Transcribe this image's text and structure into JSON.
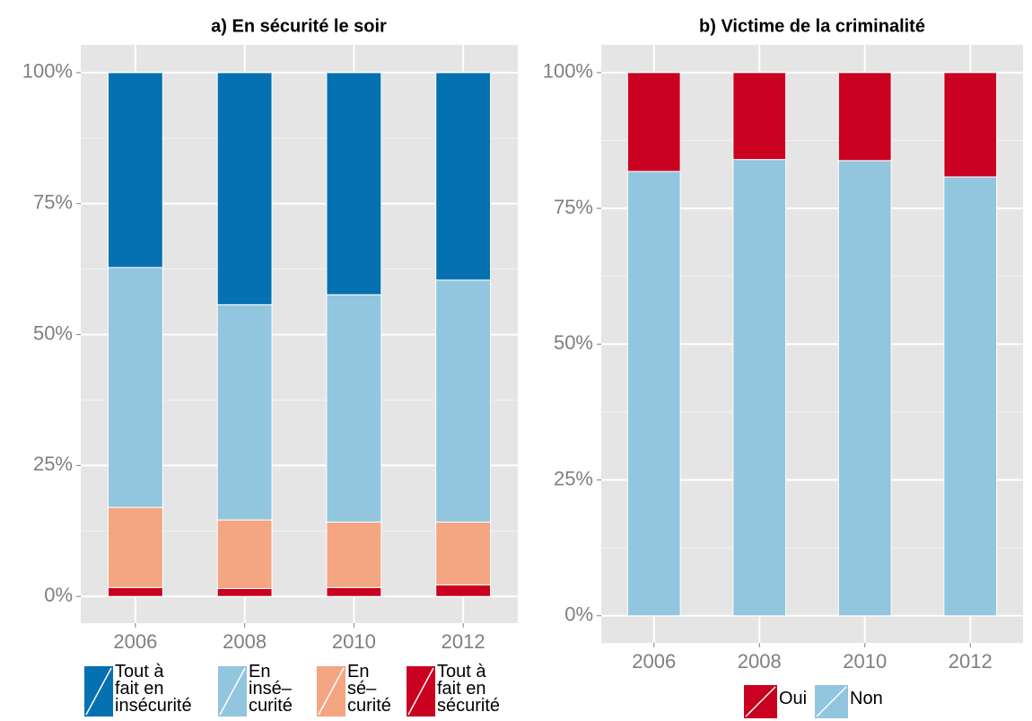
{
  "chart_data": [
    {
      "type": "bar",
      "stacked": true,
      "title": "a) En sécurité le soir",
      "categories": [
        "2006",
        "2008",
        "2010",
        "2012"
      ],
      "series": [
        {
          "name": "Tout à\nfait en\nsécurité",
          "color": "#ca0020",
          "values": [
            1.7,
            1.5,
            1.7,
            2.2
          ]
        },
        {
          "name": "En\nsé–\ncurité",
          "color": "#f4a582",
          "values": [
            15.3,
            13.1,
            12.5,
            12.0
          ]
        },
        {
          "name": "En\ninsé–\ncurité",
          "color": "#92c5de",
          "values": [
            45.8,
            41.1,
            43.4,
            46.2
          ]
        },
        {
          "name": "Tout à\nfait en\ninsécurité",
          "color": "#0571b0",
          "values": [
            37.2,
            44.3,
            42.4,
            39.6
          ]
        }
      ],
      "ylim": [
        -5.1,
        105.3
      ],
      "yticks": [
        {
          "value": 0,
          "label": "0%"
        },
        {
          "value": 25,
          "label": "25%"
        },
        {
          "value": 50,
          "label": "50%"
        },
        {
          "value": 75,
          "label": "75%"
        },
        {
          "value": 100,
          "label": "100%"
        }
      ],
      "grid": true,
      "legend": "bottom"
    },
    {
      "type": "bar",
      "stacked": true,
      "title": "b)  Victime de la criminalité",
      "categories": [
        "2006",
        "2008",
        "2010",
        "2012"
      ],
      "series": [
        {
          "name": "Non",
          "color": "#92c5de",
          "values": [
            81.8,
            84.0,
            83.8,
            80.8
          ]
        },
        {
          "name": "Oui",
          "color": "#ca0020",
          "values": [
            18.2,
            16.0,
            16.2,
            19.2
          ]
        }
      ],
      "ylim": [
        -5.0,
        105.1
      ],
      "yticks": [
        {
          "value": 0,
          "label": "0%"
        },
        {
          "value": 25,
          "label": "25%"
        },
        {
          "value": 50,
          "label": "50%"
        },
        {
          "value": 75,
          "label": "75%"
        },
        {
          "value": 100,
          "label": "100%"
        }
      ],
      "grid": true,
      "legend": "bottom"
    }
  ]
}
